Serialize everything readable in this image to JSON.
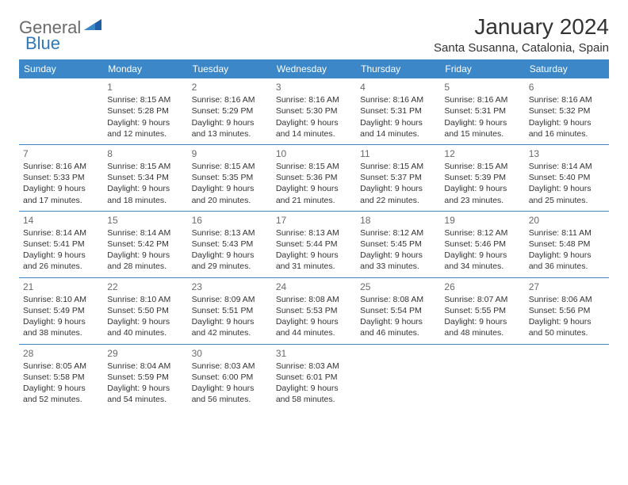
{
  "logo": {
    "text1": "General",
    "text2": "Blue"
  },
  "title": "January 2024",
  "location": "Santa Susanna, Catalonia, Spain",
  "colors": {
    "headerBar": "#3b87c8",
    "headerText": "#ffffff",
    "dayNum": "#6a6a6a",
    "bodyText": "#333333",
    "rowBorder": "#3b87c8"
  },
  "weekdays": [
    "Sunday",
    "Monday",
    "Tuesday",
    "Wednesday",
    "Thursday",
    "Friday",
    "Saturday"
  ],
  "weeks": [
    [
      null,
      {
        "n": "1",
        "sr": "Sunrise: 8:15 AM",
        "ss": "Sunset: 5:28 PM",
        "d1": "Daylight: 9 hours",
        "d2": "and 12 minutes."
      },
      {
        "n": "2",
        "sr": "Sunrise: 8:16 AM",
        "ss": "Sunset: 5:29 PM",
        "d1": "Daylight: 9 hours",
        "d2": "and 13 minutes."
      },
      {
        "n": "3",
        "sr": "Sunrise: 8:16 AM",
        "ss": "Sunset: 5:30 PM",
        "d1": "Daylight: 9 hours",
        "d2": "and 14 minutes."
      },
      {
        "n": "4",
        "sr": "Sunrise: 8:16 AM",
        "ss": "Sunset: 5:31 PM",
        "d1": "Daylight: 9 hours",
        "d2": "and 14 minutes."
      },
      {
        "n": "5",
        "sr": "Sunrise: 8:16 AM",
        "ss": "Sunset: 5:31 PM",
        "d1": "Daylight: 9 hours",
        "d2": "and 15 minutes."
      },
      {
        "n": "6",
        "sr": "Sunrise: 8:16 AM",
        "ss": "Sunset: 5:32 PM",
        "d1": "Daylight: 9 hours",
        "d2": "and 16 minutes."
      }
    ],
    [
      {
        "n": "7",
        "sr": "Sunrise: 8:16 AM",
        "ss": "Sunset: 5:33 PM",
        "d1": "Daylight: 9 hours",
        "d2": "and 17 minutes."
      },
      {
        "n": "8",
        "sr": "Sunrise: 8:15 AM",
        "ss": "Sunset: 5:34 PM",
        "d1": "Daylight: 9 hours",
        "d2": "and 18 minutes."
      },
      {
        "n": "9",
        "sr": "Sunrise: 8:15 AM",
        "ss": "Sunset: 5:35 PM",
        "d1": "Daylight: 9 hours",
        "d2": "and 20 minutes."
      },
      {
        "n": "10",
        "sr": "Sunrise: 8:15 AM",
        "ss": "Sunset: 5:36 PM",
        "d1": "Daylight: 9 hours",
        "d2": "and 21 minutes."
      },
      {
        "n": "11",
        "sr": "Sunrise: 8:15 AM",
        "ss": "Sunset: 5:37 PM",
        "d1": "Daylight: 9 hours",
        "d2": "and 22 minutes."
      },
      {
        "n": "12",
        "sr": "Sunrise: 8:15 AM",
        "ss": "Sunset: 5:39 PM",
        "d1": "Daylight: 9 hours",
        "d2": "and 23 minutes."
      },
      {
        "n": "13",
        "sr": "Sunrise: 8:14 AM",
        "ss": "Sunset: 5:40 PM",
        "d1": "Daylight: 9 hours",
        "d2": "and 25 minutes."
      }
    ],
    [
      {
        "n": "14",
        "sr": "Sunrise: 8:14 AM",
        "ss": "Sunset: 5:41 PM",
        "d1": "Daylight: 9 hours",
        "d2": "and 26 minutes."
      },
      {
        "n": "15",
        "sr": "Sunrise: 8:14 AM",
        "ss": "Sunset: 5:42 PM",
        "d1": "Daylight: 9 hours",
        "d2": "and 28 minutes."
      },
      {
        "n": "16",
        "sr": "Sunrise: 8:13 AM",
        "ss": "Sunset: 5:43 PM",
        "d1": "Daylight: 9 hours",
        "d2": "and 29 minutes."
      },
      {
        "n": "17",
        "sr": "Sunrise: 8:13 AM",
        "ss": "Sunset: 5:44 PM",
        "d1": "Daylight: 9 hours",
        "d2": "and 31 minutes."
      },
      {
        "n": "18",
        "sr": "Sunrise: 8:12 AM",
        "ss": "Sunset: 5:45 PM",
        "d1": "Daylight: 9 hours",
        "d2": "and 33 minutes."
      },
      {
        "n": "19",
        "sr": "Sunrise: 8:12 AM",
        "ss": "Sunset: 5:46 PM",
        "d1": "Daylight: 9 hours",
        "d2": "and 34 minutes."
      },
      {
        "n": "20",
        "sr": "Sunrise: 8:11 AM",
        "ss": "Sunset: 5:48 PM",
        "d1": "Daylight: 9 hours",
        "d2": "and 36 minutes."
      }
    ],
    [
      {
        "n": "21",
        "sr": "Sunrise: 8:10 AM",
        "ss": "Sunset: 5:49 PM",
        "d1": "Daylight: 9 hours",
        "d2": "and 38 minutes."
      },
      {
        "n": "22",
        "sr": "Sunrise: 8:10 AM",
        "ss": "Sunset: 5:50 PM",
        "d1": "Daylight: 9 hours",
        "d2": "and 40 minutes."
      },
      {
        "n": "23",
        "sr": "Sunrise: 8:09 AM",
        "ss": "Sunset: 5:51 PM",
        "d1": "Daylight: 9 hours",
        "d2": "and 42 minutes."
      },
      {
        "n": "24",
        "sr": "Sunrise: 8:08 AM",
        "ss": "Sunset: 5:53 PM",
        "d1": "Daylight: 9 hours",
        "d2": "and 44 minutes."
      },
      {
        "n": "25",
        "sr": "Sunrise: 8:08 AM",
        "ss": "Sunset: 5:54 PM",
        "d1": "Daylight: 9 hours",
        "d2": "and 46 minutes."
      },
      {
        "n": "26",
        "sr": "Sunrise: 8:07 AM",
        "ss": "Sunset: 5:55 PM",
        "d1": "Daylight: 9 hours",
        "d2": "and 48 minutes."
      },
      {
        "n": "27",
        "sr": "Sunrise: 8:06 AM",
        "ss": "Sunset: 5:56 PM",
        "d1": "Daylight: 9 hours",
        "d2": "and 50 minutes."
      }
    ],
    [
      {
        "n": "28",
        "sr": "Sunrise: 8:05 AM",
        "ss": "Sunset: 5:58 PM",
        "d1": "Daylight: 9 hours",
        "d2": "and 52 minutes."
      },
      {
        "n": "29",
        "sr": "Sunrise: 8:04 AM",
        "ss": "Sunset: 5:59 PM",
        "d1": "Daylight: 9 hours",
        "d2": "and 54 minutes."
      },
      {
        "n": "30",
        "sr": "Sunrise: 8:03 AM",
        "ss": "Sunset: 6:00 PM",
        "d1": "Daylight: 9 hours",
        "d2": "and 56 minutes."
      },
      {
        "n": "31",
        "sr": "Sunrise: 8:03 AM",
        "ss": "Sunset: 6:01 PM",
        "d1": "Daylight: 9 hours",
        "d2": "and 58 minutes."
      },
      null,
      null,
      null
    ]
  ]
}
